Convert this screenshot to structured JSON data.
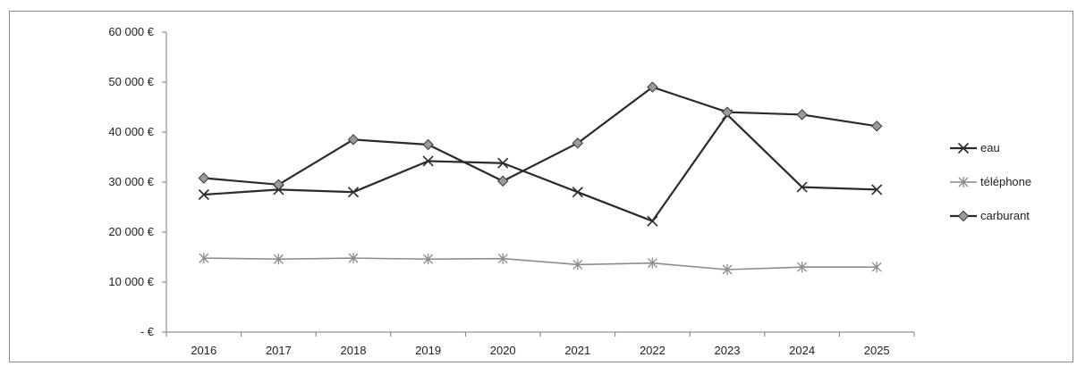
{
  "chart_data": {
    "type": "line",
    "title": "",
    "xlabel": "",
    "ylabel": "",
    "categories": [
      "2016",
      "2017",
      "2018",
      "2019",
      "2020",
      "2021",
      "2022",
      "2023",
      "2024",
      "2025"
    ],
    "ylim": [
      0,
      60000
    ],
    "yticks": [
      0,
      10000,
      20000,
      30000,
      40000,
      50000,
      60000
    ],
    "ytick_labels": [
      "-   €",
      "10 000 €",
      "20 000 €",
      "30 000 €",
      "40 000 €",
      "50 000 €",
      "60 000 €"
    ],
    "grid": false,
    "legend_position": "right",
    "series": [
      {
        "name": "eau",
        "marker": "x-cross",
        "color": "#2b2b2b",
        "values": [
          27500,
          28500,
          28000,
          34200,
          33800,
          28000,
          22200,
          43500,
          29000,
          28500
        ]
      },
      {
        "name": "téléphone",
        "marker": "asterisk",
        "color": "#8c8c8c",
        "values": [
          14800,
          14600,
          14800,
          14600,
          14700,
          13500,
          13800,
          12500,
          13000,
          13000
        ]
      },
      {
        "name": "carburant",
        "marker": "diamond",
        "color": "#2b2b2b",
        "values": [
          30800,
          29500,
          38500,
          37500,
          30200,
          37800,
          49000,
          44000,
          43500,
          41200
        ]
      }
    ]
  }
}
